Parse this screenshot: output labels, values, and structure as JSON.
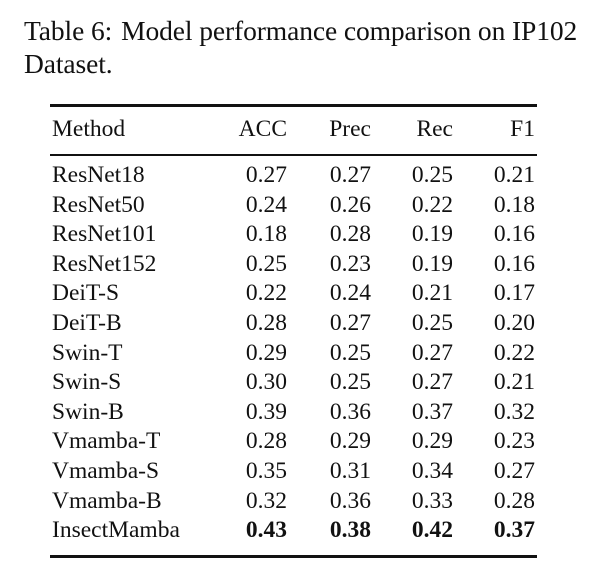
{
  "caption": {
    "label": "Table 6:",
    "text": "Model performance comparison on IP102 Dataset."
  },
  "table": {
    "headers": [
      "Method",
      "ACC",
      "Prec",
      "Rec",
      "F1"
    ],
    "rows": [
      {
        "method": "ResNet18",
        "acc": "0.27",
        "prec": "0.27",
        "rec": "0.25",
        "f1": "0.21"
      },
      {
        "method": "ResNet50",
        "acc": "0.24",
        "prec": "0.26",
        "rec": "0.22",
        "f1": "0.18"
      },
      {
        "method": "ResNet101",
        "acc": "0.18",
        "prec": "0.28",
        "rec": "0.19",
        "f1": "0.16"
      },
      {
        "method": "ResNet152",
        "acc": "0.25",
        "prec": "0.23",
        "rec": "0.19",
        "f1": "0.16"
      },
      {
        "method": "DeiT-S",
        "acc": "0.22",
        "prec": "0.24",
        "rec": "0.21",
        "f1": "0.17"
      },
      {
        "method": "DeiT-B",
        "acc": "0.28",
        "prec": "0.27",
        "rec": "0.25",
        "f1": "0.20"
      },
      {
        "method": "Swin-T",
        "acc": "0.29",
        "prec": "0.25",
        "rec": "0.27",
        "f1": "0.22"
      },
      {
        "method": "Swin-S",
        "acc": "0.30",
        "prec": "0.25",
        "rec": "0.27",
        "f1": "0.21"
      },
      {
        "method": "Swin-B",
        "acc": "0.39",
        "prec": "0.36",
        "rec": "0.37",
        "f1": "0.32"
      },
      {
        "method": "Vmamba-T",
        "acc": "0.28",
        "prec": "0.29",
        "rec": "0.29",
        "f1": "0.23"
      },
      {
        "method": "Vmamba-S",
        "acc": "0.35",
        "prec": "0.31",
        "rec": "0.34",
        "f1": "0.27"
      },
      {
        "method": "Vmamba-B",
        "acc": "0.32",
        "prec": "0.36",
        "rec": "0.33",
        "f1": "0.28"
      },
      {
        "method": "InsectMamba",
        "acc": "0.43",
        "prec": "0.38",
        "rec": "0.42",
        "f1": "0.37",
        "bold_values": true
      }
    ]
  }
}
